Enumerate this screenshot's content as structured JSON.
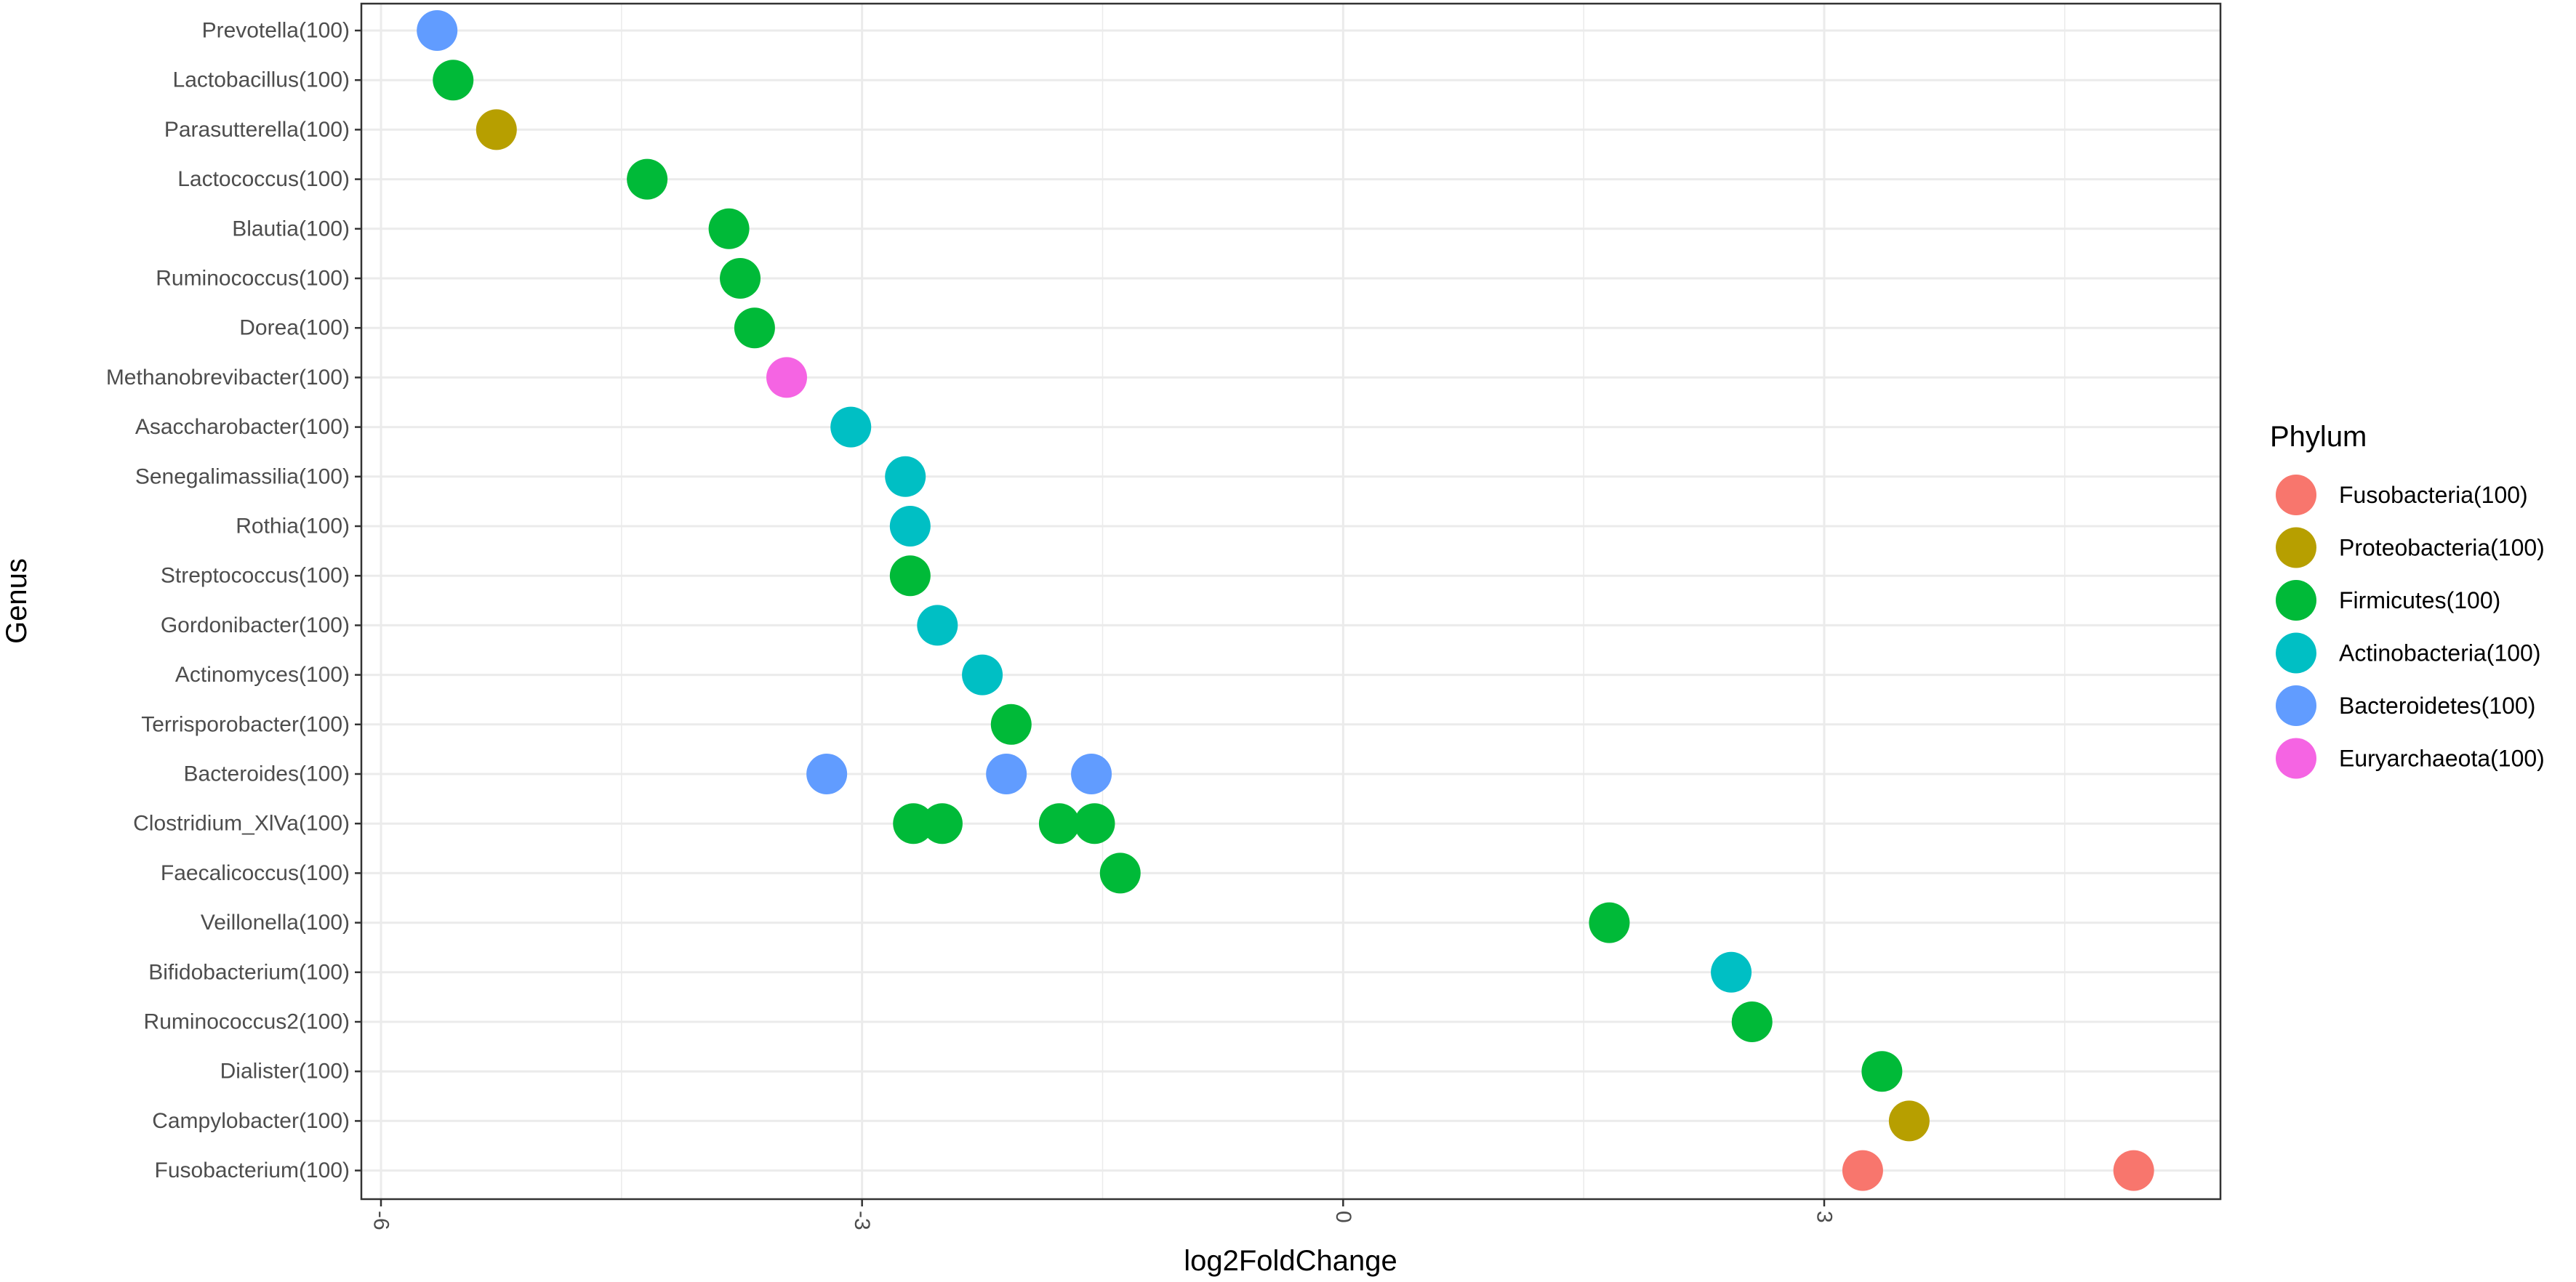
{
  "chart_data": {
    "type": "scatter",
    "xlabel": "log2FoldChange",
    "ylabel": "Genus",
    "xlim": [
      -6.3,
      5.4
    ],
    "x_ticks": [
      -6,
      -3,
      0,
      3
    ],
    "x_tick_labels": [
      "-6",
      "-3",
      "0",
      "3"
    ],
    "grid": true,
    "legend_position": "right",
    "legend_title": "Phylum",
    "categories": [
      "Prevotella(100)",
      "Lactobacillus(100)",
      "Parasutterella(100)",
      "Lactococcus(100)",
      "Blautia(100)",
      "Ruminococcus(100)",
      "Dorea(100)",
      "Methanobrevibacter(100)",
      "Asaccharobacter(100)",
      "Senegalimassilia(100)",
      "Rothia(100)",
      "Streptococcus(100)",
      "Gordonibacter(100)",
      "Actinomyces(100)",
      "Terrisporobacter(100)",
      "Bacteroides(100)",
      "Clostridium_XlVa(100)",
      "Faecalicoccus(100)",
      "Veillonella(100)",
      "Bifidobacterium(100)",
      "Ruminococcus2(100)",
      "Dialister(100)",
      "Campylobacter(100)",
      "Fusobacterium(100)"
    ],
    "series": [
      {
        "name": "Fusobacteria(100)",
        "color": "#F8766D",
        "points": [
          {
            "genus": "Fusobacterium(100)",
            "x": 3.24
          },
          {
            "genus": "Fusobacterium(100)",
            "x": 4.93
          }
        ]
      },
      {
        "name": "Proteobacteria(100)",
        "color": "#B79F00",
        "points": [
          {
            "genus": "Parasutterella(100)",
            "x": -5.28
          },
          {
            "genus": "Campylobacter(100)",
            "x": 3.53
          }
        ]
      },
      {
        "name": "Firmicutes(100)",
        "color": "#00BA38",
        "points": [
          {
            "genus": "Lactobacillus(100)",
            "x": -5.55
          },
          {
            "genus": "Lactococcus(100)",
            "x": -4.34
          },
          {
            "genus": "Blautia(100)",
            "x": -3.83
          },
          {
            "genus": "Ruminococcus(100)",
            "x": -3.76
          },
          {
            "genus": "Dorea(100)",
            "x": -3.67
          },
          {
            "genus": "Streptococcus(100)",
            "x": -2.7
          },
          {
            "genus": "Terrisporobacter(100)",
            "x": -2.07
          },
          {
            "genus": "Clostridium_XlVa(100)",
            "x": -2.68
          },
          {
            "genus": "Clostridium_XlVa(100)",
            "x": -2.5
          },
          {
            "genus": "Clostridium_XlVa(100)",
            "x": -1.77
          },
          {
            "genus": "Clostridium_XlVa(100)",
            "x": -1.55
          },
          {
            "genus": "Faecalicoccus(100)",
            "x": -1.39
          },
          {
            "genus": "Veillonella(100)",
            "x": 1.66
          },
          {
            "genus": "Ruminococcus2(100)",
            "x": 2.55
          },
          {
            "genus": "Dialister(100)",
            "x": 3.36
          }
        ]
      },
      {
        "name": "Actinobacteria(100)",
        "color": "#00BFC4",
        "points": [
          {
            "genus": "Asaccharobacter(100)",
            "x": -3.07
          },
          {
            "genus": "Senegalimassilia(100)",
            "x": -2.73
          },
          {
            "genus": "Rothia(100)",
            "x": -2.7
          },
          {
            "genus": "Gordonibacter(100)",
            "x": -2.53
          },
          {
            "genus": "Actinomyces(100)",
            "x": -2.25
          },
          {
            "genus": "Bifidobacterium(100)",
            "x": 2.42
          }
        ]
      },
      {
        "name": "Bacteroidetes(100)",
        "color": "#619CFF",
        "points": [
          {
            "genus": "Prevotella(100)",
            "x": -5.65
          },
          {
            "genus": "Bacteroides(100)",
            "x": -3.22
          },
          {
            "genus": "Bacteroides(100)",
            "x": -2.1
          },
          {
            "genus": "Bacteroides(100)",
            "x": -1.57
          }
        ]
      },
      {
        "name": "Euryarchaeota(100)",
        "color": "#F564E3",
        "points": [
          {
            "genus": "Methanobrevibacter(100)",
            "x": -3.47
          }
        ]
      }
    ]
  }
}
